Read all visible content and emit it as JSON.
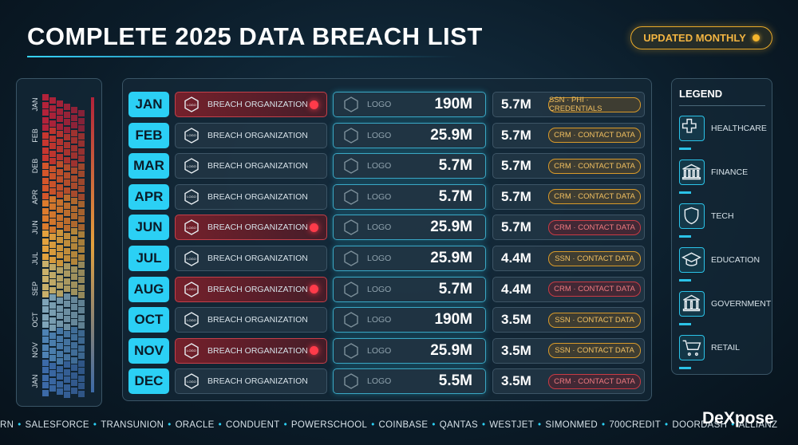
{
  "header": {
    "title": "COMPLETE 2025 DATA BREACH LIST",
    "badge": "UPDATED MONTHLY"
  },
  "sidebar": {
    "labels": [
      "JAN",
      "FEB",
      "DEB",
      "APR",
      "JUN",
      "JUL",
      "SEP",
      "OCT",
      "NOV",
      "JAN"
    ]
  },
  "table": {
    "rows": [
      {
        "month": "JAN",
        "organization": "BREACH ORGANIZATION",
        "org_logo": "LOGO",
        "logo": "LOGO",
        "amount": "190M",
        "records": "5.7M",
        "tags": "SSN · PHI · CREDENTIALS",
        "alert": true,
        "tag_tone": "amber"
      },
      {
        "month": "FEB",
        "organization": "BREACH ORGANIZATION",
        "org_logo": "LOGO",
        "logo": "LOGO",
        "amount": "25.9M",
        "records": "5.7M",
        "tags": "CRM · CONTACT DATA",
        "alert": false,
        "tag_tone": "amber"
      },
      {
        "month": "MAR",
        "organization": "BREACH ORGANIZATION",
        "org_logo": "LOGO",
        "logo": "LOGO",
        "amount": "5.7M",
        "records": "5.7M",
        "tags": "CRM · CONTACT DATA",
        "alert": false,
        "tag_tone": "amber"
      },
      {
        "month": "APR",
        "organization": "BREACH ORGANIZATION",
        "org_logo": "LOGO",
        "logo": "LOGO",
        "amount": "5.7M",
        "records": "5.7M",
        "tags": "CRM · CONTACT DATA",
        "alert": false,
        "tag_tone": "amber"
      },
      {
        "month": "JUN",
        "organization": "BREACH ORGANIZATION",
        "org_logo": "LOGO",
        "logo": "LOGO",
        "amount": "25.9M",
        "records": "5.7M",
        "tags": "CRM · CONTACT DATA",
        "alert": true,
        "tag_tone": "red"
      },
      {
        "month": "JUL",
        "organization": "BREACH ORGANIZATION",
        "org_logo": "LOGO",
        "logo": "LOGO",
        "amount": "25.9M",
        "records": "4.4M",
        "tags": "SSN · CONTACT DATA",
        "alert": false,
        "tag_tone": "amber"
      },
      {
        "month": "AUG",
        "organization": "BREACH ORGANIZATION",
        "org_logo": "LOGO",
        "logo": "LOGO",
        "amount": "5.7M",
        "records": "4.4M",
        "tags": "CRM · CONTACT DATA",
        "alert": true,
        "tag_tone": "red"
      },
      {
        "month": "OCT",
        "organization": "BREACH ORGANIZATION",
        "org_logo": "LOGO",
        "logo": "LOGO",
        "amount": "190M",
        "records": "3.5M",
        "tags": "SSN · CONTACT DATA",
        "alert": false,
        "tag_tone": "amber"
      },
      {
        "month": "NOV",
        "organization": "BREACH ORGANIZATION",
        "org_logo": "LOGO",
        "logo": "LOGO",
        "amount": "25.9M",
        "records": "3.5M",
        "tags": "SSN · CONTACT DATA",
        "alert": true,
        "tag_tone": "amber"
      },
      {
        "month": "DEC",
        "organization": "BREACH ORGANIZATION",
        "org_logo": "LOGO",
        "logo": "LOGO",
        "amount": "5.5M",
        "records": "3.5M",
        "tags": "CRM · CONTACT DATA",
        "alert": false,
        "tag_tone": "red"
      }
    ]
  },
  "legend": {
    "title": "LEGEND",
    "items": [
      "HEALTHCARE",
      "FINANCE",
      "TECH",
      "EDUCATION",
      "GOVERNMENT",
      "RETAIL"
    ]
  },
  "ticker": [
    "RN",
    "SALESFORCE",
    "TRANSUNION",
    "ORACLE",
    "CONDUENT",
    "POWERSCHOOL",
    "COINBASE",
    "QANTAS",
    "WESTJET",
    "SIMONMED",
    "700CREDIT",
    "DOORDASH",
    "ALLIANZ"
  ],
  "brand": "DeXpose"
}
